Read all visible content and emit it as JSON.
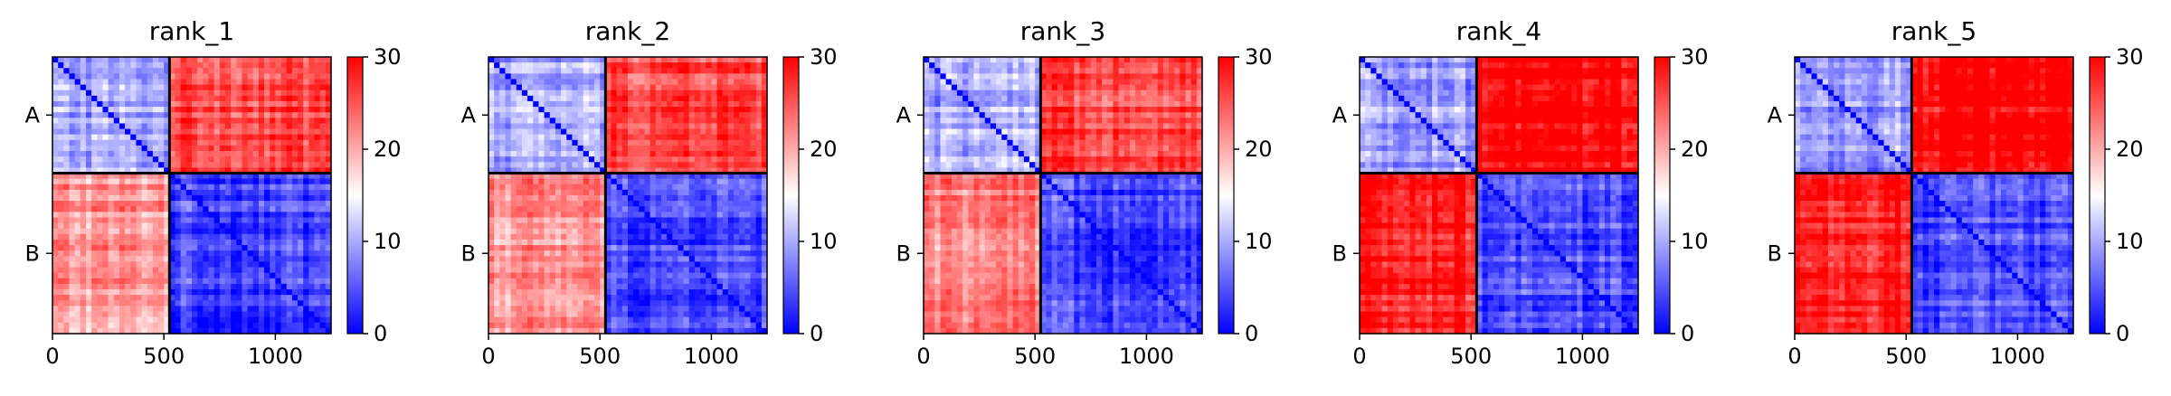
{
  "chart_data": [
    {
      "type": "heatmap",
      "title": "rank_1",
      "xlabel": "",
      "ylabel": "",
      "x_range": [
        0,
        1250
      ],
      "x_ticks": [
        0,
        500,
        1000
      ],
      "x_tick_labels": [
        "0",
        "500",
        "1000"
      ],
      "chain_boundary": 525,
      "y_tick_labels": [
        "A",
        "B"
      ],
      "colorbar": {
        "range": [
          0,
          30
        ],
        "ticks": [
          0,
          10,
          20,
          30
        ],
        "tick_labels": [
          "0",
          "10",
          "20",
          "30"
        ],
        "colormap": "bwr"
      },
      "block_means": {
        "A-A": 10,
        "A-B": 26,
        "B-A": 21,
        "B-B": 4
      }
    },
    {
      "type": "heatmap",
      "title": "rank_2",
      "xlabel": "",
      "ylabel": "",
      "x_range": [
        0,
        1250
      ],
      "x_ticks": [
        0,
        500,
        1000
      ],
      "x_tick_labels": [
        "0",
        "500",
        "1000"
      ],
      "chain_boundary": 525,
      "y_tick_labels": [
        "A",
        "B"
      ],
      "colorbar": {
        "range": [
          0,
          30
        ],
        "ticks": [
          0,
          10,
          20,
          30
        ],
        "tick_labels": [
          "0",
          "10",
          "20",
          "30"
        ],
        "colormap": "bwr"
      },
      "block_means": {
        "A-A": 10,
        "A-B": 26,
        "B-A": 21,
        "B-B": 4
      }
    },
    {
      "type": "heatmap",
      "title": "rank_3",
      "xlabel": "",
      "ylabel": "",
      "x_range": [
        0,
        1250
      ],
      "x_ticks": [
        0,
        500,
        1000
      ],
      "x_tick_labels": [
        "0",
        "500",
        "1000"
      ],
      "chain_boundary": 525,
      "y_tick_labels": [
        "A",
        "B"
      ],
      "colorbar": {
        "range": [
          0,
          30
        ],
        "ticks": [
          0,
          10,
          20,
          30
        ],
        "tick_labels": [
          "0",
          "10",
          "20",
          "30"
        ],
        "colormap": "bwr"
      },
      "block_means": {
        "A-A": 10,
        "A-B": 26,
        "B-A": 22,
        "B-B": 4
      }
    },
    {
      "type": "heatmap",
      "title": "rank_4",
      "xlabel": "",
      "ylabel": "",
      "x_range": [
        0,
        1250
      ],
      "x_ticks": [
        0,
        500,
        1000
      ],
      "x_tick_labels": [
        "0",
        "500",
        "1000"
      ],
      "chain_boundary": 525,
      "y_tick_labels": [
        "A",
        "B"
      ],
      "colorbar": {
        "range": [
          0,
          30
        ],
        "ticks": [
          0,
          10,
          20,
          30
        ],
        "tick_labels": [
          "0",
          "10",
          "20",
          "30"
        ],
        "colormap": "bwr"
      },
      "block_means": {
        "A-A": 9,
        "A-B": 30,
        "B-A": 28,
        "B-B": 4
      }
    },
    {
      "type": "heatmap",
      "title": "rank_5",
      "xlabel": "",
      "ylabel": "",
      "x_range": [
        0,
        1250
      ],
      "x_ticks": [
        0,
        500,
        1000
      ],
      "x_tick_labels": [
        "0",
        "500",
        "1000"
      ],
      "chain_boundary": 525,
      "y_tick_labels": [
        "A",
        "B"
      ],
      "colorbar": {
        "range": [
          0,
          30
        ],
        "ticks": [
          0,
          10,
          20,
          30
        ],
        "tick_labels": [
          "0",
          "10",
          "20",
          "30"
        ],
        "colormap": "bwr"
      },
      "block_means": {
        "A-A": 9,
        "A-B": 30,
        "B-A": 28,
        "B-B": 4
      }
    }
  ]
}
